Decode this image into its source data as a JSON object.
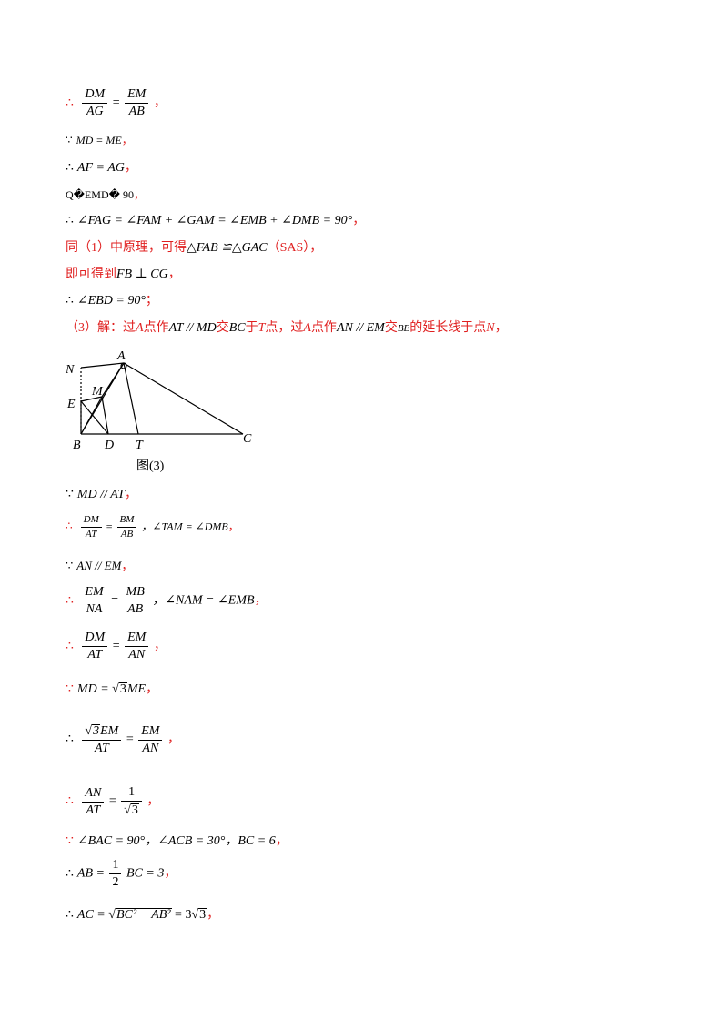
{
  "l1": {
    "sym": "∴",
    "f1n": "DM",
    "f1d": "AG",
    "eq": "=",
    "f2n": "EM",
    "f2d": "AB",
    "end": "，"
  },
  "l2": {
    "sym": "∵",
    "expr": "MD = ME",
    "end": "，"
  },
  "l3": {
    "sym": "∴",
    "expr": "AF = AG",
    "end": "，"
  },
  "l4": {
    "expr": "Q�EMD� 90",
    "end": "，"
  },
  "l5": {
    "sym": "∴",
    "expr": "∠FAG = ∠FAM + ∠GAM = ∠EMB + ∠DMB = 90°",
    "end": "，"
  },
  "l6": {
    "a": "同（1）中原理，可得",
    "expr": "△FAB ≌△GAC",
    "b": "（SAS），"
  },
  "l7": {
    "a": "即可得到",
    "expr": "FB ⊥ CG",
    "end": "，"
  },
  "l8": {
    "sym": "∴",
    "expr": "∠EBD = 90°",
    "end": "；"
  },
  "l9": {
    "a": "（3）解：过",
    "b": "A",
    "c": "点作",
    "d": "AT // MD",
    "e": "交",
    "f": "BC",
    "g": "于",
    "h": "T",
    "i": "点，过",
    "j": "A",
    "k": "点作",
    "l": "AN // EM",
    "m": "交",
    "n": "BE",
    "o": "的延长线于点",
    "p": "N",
    "q": "，"
  },
  "figure": {
    "labels": {
      "N": "N",
      "A": "A",
      "E": "E",
      "M": "M",
      "B": "B",
      "D": "D",
      "T": "T",
      "C": "C"
    },
    "caption": "图(3)"
  },
  "l10": {
    "sym": "∵",
    "expr": "MD // AT",
    "end": "，"
  },
  "l11": {
    "sym": "∴",
    "f1n": "DM",
    "f1d": "AT",
    "eq": "=",
    "f2n": "BM",
    "f2d": "AB",
    "mid": "，∠TAM = ∠DMB",
    "end": "，"
  },
  "l12": {
    "sym": "∵",
    "expr": "AN // EM",
    "end": "，"
  },
  "l13": {
    "sym": "∴",
    "f1n": "EM",
    "f1d": "NA",
    "eq": "=",
    "f2n": "MB",
    "f2d": "AB",
    "mid": "，∠NAM = ∠EMB",
    "end": "，"
  },
  "l14": {
    "sym": "∴",
    "f1n": "DM",
    "f1d": "AT",
    "eq": "=",
    "f2n": "EM",
    "f2d": "AN",
    "end": "，"
  },
  "l15": {
    "sym": "∵",
    "a": "MD = ",
    "r": "3",
    "b": "ME",
    "end": "，"
  },
  "l16": {
    "sym": "∴",
    "r": "3",
    "f1n": "EM",
    "f1d": "AT",
    "eq": "=",
    "f2n": "EM",
    "f2d": "AN",
    "end": "，"
  },
  "l17": {
    "sym": "∴",
    "f1n": "AN",
    "f1d": "AT",
    "eq": "=",
    "f2n": "1",
    "r": "3",
    "end": "，"
  },
  "l18": {
    "sym": "∵",
    "expr": "∠BAC = 90°，∠ACB = 30°，BC = 6",
    "end": "，"
  },
  "l19": {
    "sym": "∴",
    "a": "AB = ",
    "fn": "1",
    "fd": "2",
    "b": "BC = 3",
    "end": "，"
  },
  "l20": {
    "sym": "∴",
    "a": "AC = ",
    "r": "BC² − AB²",
    "b": " = 3",
    "r2": "3",
    "end": "，"
  }
}
